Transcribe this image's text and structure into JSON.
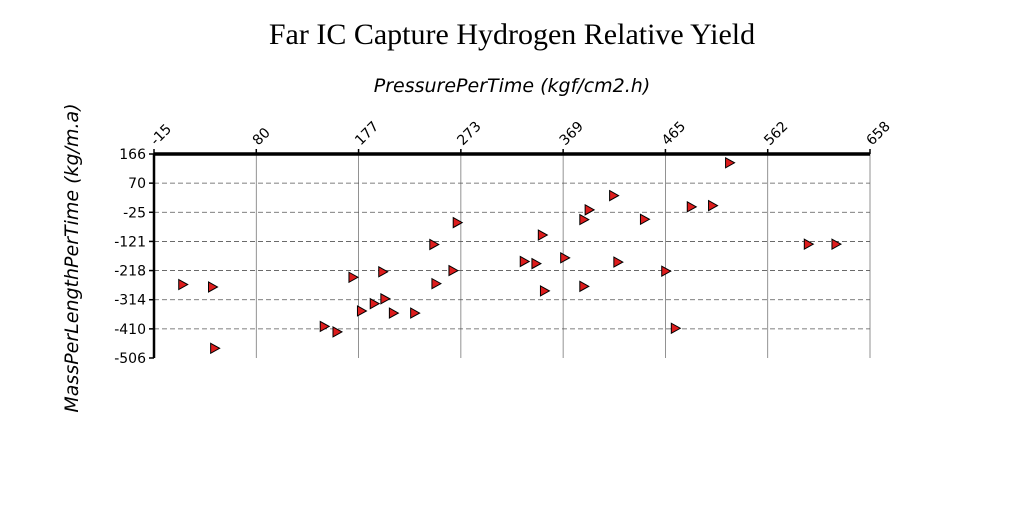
{
  "chart_data": {
    "type": "scatter",
    "title": "Far IC Capture Hydrogen Relative Yield",
    "xlabel": "PressurePerTime (kgf/cm2.h)",
    "ylabel": "MassPerLengthPerTime (kg/m.a)",
    "x_ticks": [
      "-15",
      "80",
      "177",
      "273",
      "369",
      "465",
      "562",
      "658"
    ],
    "y_ticks": [
      "166",
      "70",
      "-25",
      "-121",
      "-218",
      "-314",
      "-410",
      "-506"
    ],
    "xlim": [
      -15,
      658
    ],
    "ylim": [
      -506,
      166
    ],
    "x_axis_position": "top",
    "grid": true,
    "marker": "triangle-right",
    "color": "#dd1c1c",
    "points": [
      {
        "x": 12,
        "y": -264
      },
      {
        "x": 40,
        "y": -272
      },
      {
        "x": 42,
        "y": -474
      },
      {
        "x": 145,
        "y": -402
      },
      {
        "x": 157,
        "y": -420
      },
      {
        "x": 172,
        "y": -240
      },
      {
        "x": 180,
        "y": -351
      },
      {
        "x": 192,
        "y": -327
      },
      {
        "x": 200,
        "y": -222
      },
      {
        "x": 202,
        "y": -311
      },
      {
        "x": 210,
        "y": -358
      },
      {
        "x": 230,
        "y": -358
      },
      {
        "x": 248,
        "y": -132
      },
      {
        "x": 250,
        "y": -261
      },
      {
        "x": 266,
        "y": -218
      },
      {
        "x": 270,
        "y": -60
      },
      {
        "x": 333,
        "y": -188
      },
      {
        "x": 344,
        "y": -195
      },
      {
        "x": 350,
        "y": -101
      },
      {
        "x": 352,
        "y": -285
      },
      {
        "x": 371,
        "y": -176
      },
      {
        "x": 389,
        "y": -50
      },
      {
        "x": 389,
        "y": -270
      },
      {
        "x": 394,
        "y": -18
      },
      {
        "x": 417,
        "y": 29
      },
      {
        "x": 421,
        "y": -190
      },
      {
        "x": 446,
        "y": -49
      },
      {
        "x": 466,
        "y": -220
      },
      {
        "x": 475,
        "y": -408
      },
      {
        "x": 490,
        "y": -8
      },
      {
        "x": 510,
        "y": -4
      },
      {
        "x": 526,
        "y": 137
      },
      {
        "x": 600,
        "y": -131
      },
      {
        "x": 626,
        "y": -131
      }
    ]
  }
}
